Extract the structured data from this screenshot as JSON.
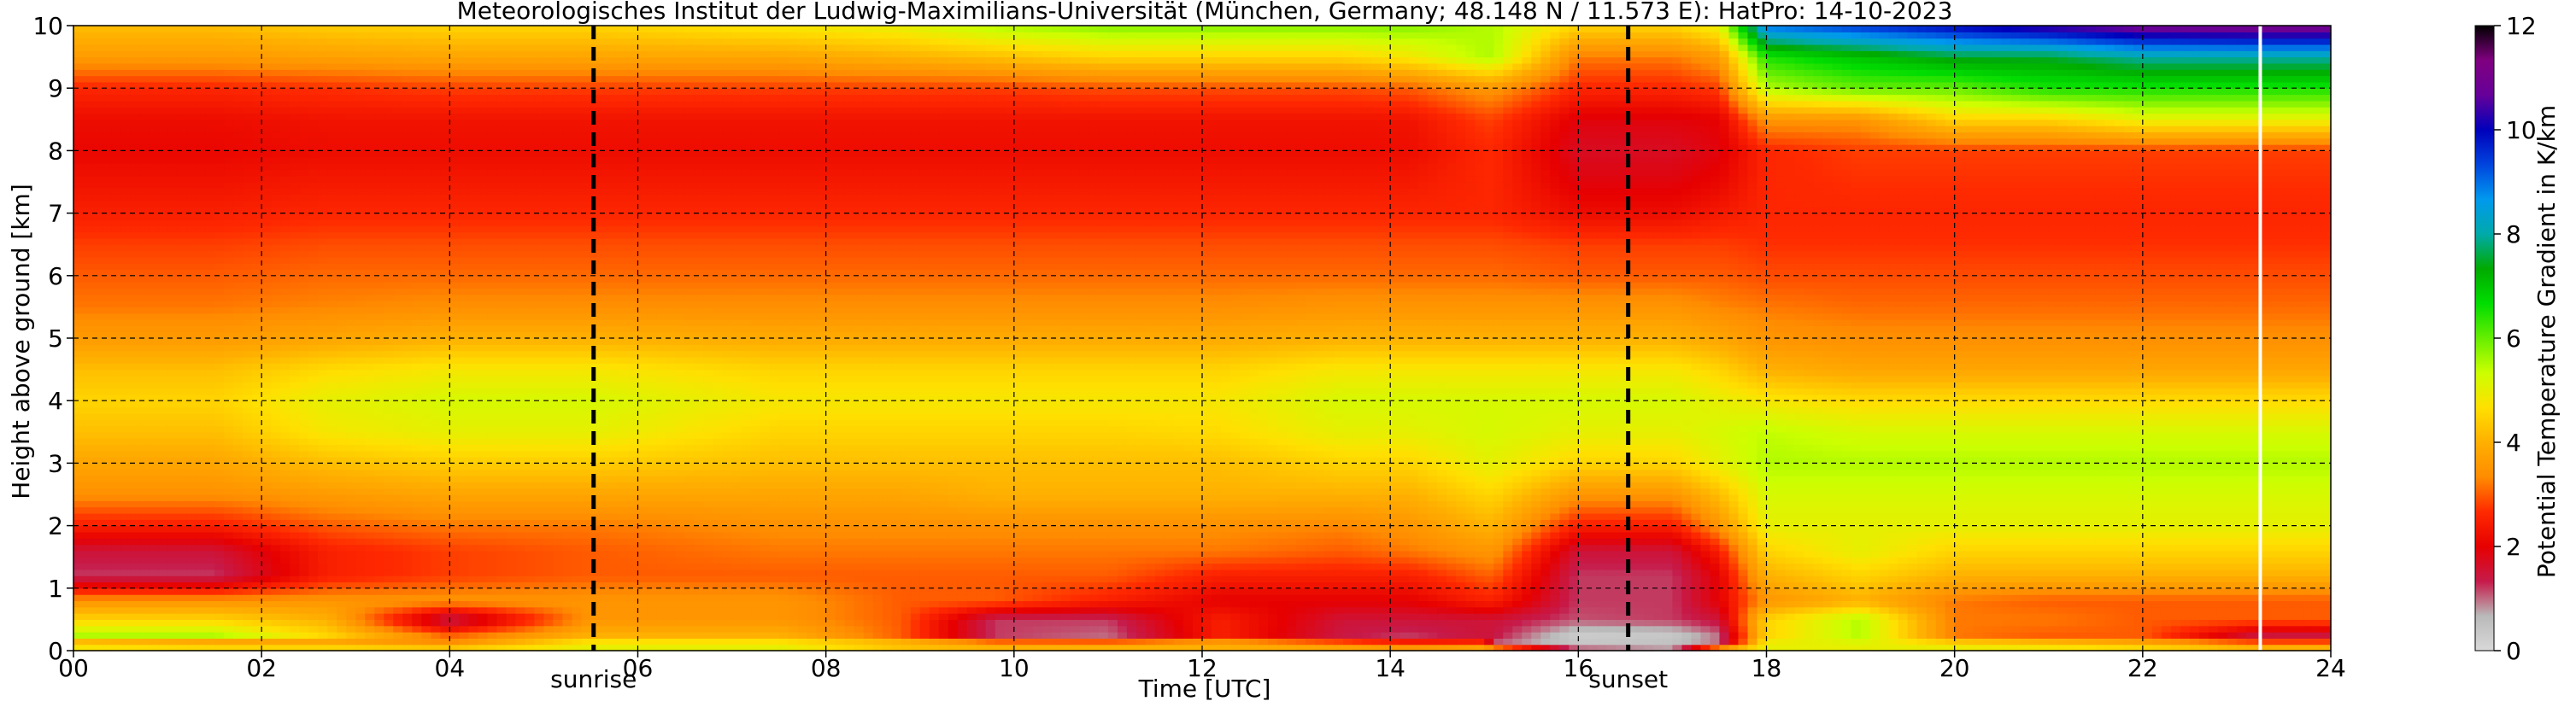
{
  "chart_data": {
    "type": "heatmap",
    "title": "Meteorologisches Institut der Ludwig-Maximilians-Universität (München, Germany; 48.148 N / 11.573 E):    HatPro: 14-10-2023",
    "xlabel": "Time [UTC]",
    "ylabel": "Height above ground [km]",
    "xlim": [
      0,
      24
    ],
    "ylim": [
      0,
      10
    ],
    "x_ticks": [
      "00",
      "02",
      "04",
      "06",
      "08",
      "10",
      "12",
      "14",
      "16",
      "18",
      "20",
      "22",
      "24"
    ],
    "y_ticks": [
      "0",
      "1",
      "2",
      "3",
      "4",
      "5",
      "6",
      "7",
      "8",
      "9",
      "10"
    ],
    "grid": true,
    "colorbar": {
      "label": "Potential Temperature Gradient in K/km",
      "range": [
        0,
        12
      ],
      "ticks": [
        "0",
        "2",
        "4",
        "6",
        "8",
        "10",
        "12"
      ],
      "colors": [
        "#d9d9d9",
        "#b9b9b9",
        "#c61a4a",
        "#e60000",
        "#ff2a00",
        "#ff8c00",
        "#ffb000",
        "#ffe000",
        "#ccff00",
        "#66ee00",
        "#00dd00",
        "#00aa00",
        "#00aaaa",
        "#0099ee",
        "#0044dd",
        "#0000bb",
        "#660099",
        "#800080",
        "#000000"
      ]
    },
    "events": [
      {
        "name": "sunrise",
        "time": 5.53
      },
      {
        "name": "sunset",
        "time": 16.53
      }
    ],
    "gap_time": 23.25,
    "time_knots": [
      0,
      1.5,
      2.7,
      4.0,
      5.5,
      7.5,
      8.8,
      9.8,
      11.0,
      12.2,
      13.5,
      14.2,
      15.0,
      15.1,
      16.0,
      17.0,
      17.5,
      18.0,
      19.0,
      20.0,
      21.0,
      22.0,
      23.2,
      24.0
    ],
    "height_knots": [
      0,
      0.1,
      0.25,
      0.5,
      0.8,
      1.2,
      1.6,
      2.0,
      2.5,
      3.0,
      3.5,
      4.0,
      4.5,
      5.0,
      5.5,
      6.0,
      6.5,
      7.0,
      7.5,
      8.0,
      8.5,
      9.0,
      9.5,
      10.0
    ],
    "gradient_grid": [
      [
        6.0,
        6.0,
        5.5,
        5.0,
        5.0,
        5.0,
        4.0,
        4.0,
        4.0,
        4.0,
        4.0,
        4.0,
        4.5,
        5.5,
        1.5,
        1.0,
        5.5,
        5.0,
        5.0,
        5.0,
        5.0,
        5.0,
        4.5,
        4.5
      ],
      [
        3.5,
        3.0,
        3.5,
        3.5,
        5.0,
        5.0,
        4.5,
        4.0,
        4.0,
        4.0,
        3.5,
        3.0,
        3.0,
        1.0,
        0.4,
        0.5,
        1.0,
        5.0,
        5.0,
        4.8,
        4.5,
        4.0,
        3.5,
        3.5
      ],
      [
        5.5,
        5.5,
        4.5,
        3.0,
        4.0,
        4.0,
        3.0,
        1.2,
        1.0,
        2.5,
        1.4,
        1.2,
        1.5,
        1.4,
        0.3,
        0.4,
        1.0,
        4.5,
        5.5,
        3.2,
        3.0,
        3.0,
        1.5,
        1.5
      ],
      [
        4.5,
        4.5,
        4.0,
        1.2,
        3.5,
        3.5,
        3.0,
        1.2,
        1.2,
        2.5,
        1.5,
        1.5,
        1.5,
        1.5,
        1.1,
        1.2,
        1.5,
        4.5,
        5.5,
        3.2,
        3.2,
        3.0,
        3.0,
        3.0
      ],
      [
        3.5,
        3.5,
        3.5,
        3.5,
        3.5,
        3.5,
        3.0,
        3.0,
        2.5,
        2.0,
        2.0,
        2.0,
        2.5,
        2.5,
        1.2,
        1.2,
        2.0,
        3.5,
        4.0,
        3.2,
        3.0,
        3.0,
        3.0,
        3.0
      ],
      [
        1.2,
        1.2,
        2.5,
        2.8,
        3.0,
        3.0,
        3.0,
        3.0,
        3.0,
        2.5,
        2.5,
        2.5,
        3.0,
        3.0,
        1.2,
        1.2,
        2.0,
        4.0,
        4.5,
        4.0,
        4.0,
        4.0,
        4.0,
        4.0
      ],
      [
        1.5,
        1.5,
        2.5,
        2.8,
        3.0,
        3.2,
        3.2,
        3.2,
        3.2,
        3.2,
        3.0,
        3.2,
        3.5,
        3.5,
        1.5,
        1.5,
        2.5,
        4.5,
        5.0,
        4.5,
        4.5,
        4.5,
        4.5,
        4.5
      ],
      [
        2.5,
        2.5,
        3.0,
        3.2,
        3.2,
        3.4,
        3.4,
        3.4,
        3.4,
        3.4,
        3.3,
        3.5,
        4.0,
        4.0,
        2.5,
        2.5,
        3.5,
        5.0,
        5.0,
        5.0,
        5.0,
        5.0,
        5.0,
        5.0
      ],
      [
        3.4,
        3.4,
        3.6,
        3.8,
        3.8,
        3.8,
        3.8,
        4.0,
        4.0,
        4.0,
        4.0,
        4.0,
        4.5,
        4.5,
        3.5,
        3.5,
        4.2,
        5.2,
        5.2,
        5.2,
        5.2,
        5.2,
        5.2,
        5.2
      ],
      [
        3.8,
        3.8,
        4.2,
        4.4,
        4.4,
        4.2,
        4.2,
        4.2,
        4.2,
        4.2,
        4.5,
        4.5,
        5.0,
        5.0,
        4.5,
        4.5,
        5.0,
        5.5,
        5.5,
        5.5,
        5.5,
        5.5,
        5.5,
        5.5
      ],
      [
        4.2,
        4.2,
        4.8,
        5.0,
        5.0,
        4.5,
        4.5,
        4.5,
        4.5,
        4.6,
        5.0,
        5.0,
        5.2,
        5.2,
        5.0,
        5.0,
        5.2,
        5.4,
        5.2,
        5.2,
        5.2,
        5.2,
        5.2,
        5.2
      ],
      [
        4.5,
        4.5,
        5.0,
        5.2,
        5.2,
        4.8,
        4.8,
        4.8,
        4.8,
        4.8,
        5.2,
        5.2,
        5.2,
        5.2,
        5.2,
        5.2,
        5.0,
        4.8,
        4.6,
        4.6,
        4.6,
        4.6,
        4.6,
        4.6
      ],
      [
        4.2,
        4.2,
        4.6,
        4.8,
        4.8,
        4.5,
        4.5,
        4.5,
        4.5,
        4.5,
        4.8,
        4.8,
        4.8,
        4.8,
        4.8,
        4.8,
        4.5,
        4.0,
        3.8,
        3.8,
        3.8,
        3.8,
        3.8,
        3.8
      ],
      [
        3.6,
        3.6,
        3.8,
        4.0,
        4.0,
        3.9,
        3.9,
        3.9,
        3.9,
        3.9,
        4.0,
        4.0,
        4.0,
        4.0,
        4.0,
        4.0,
        3.8,
        3.5,
        3.4,
        3.4,
        3.4,
        3.4,
        3.4,
        3.4
      ],
      [
        3.2,
        3.2,
        3.3,
        3.4,
        3.4,
        3.4,
        3.4,
        3.4,
        3.4,
        3.4,
        3.5,
        3.5,
        3.5,
        3.5,
        3.5,
        3.5,
        3.3,
        3.2,
        3.1,
        3.1,
        3.1,
        3.1,
        3.1,
        3.1
      ],
      [
        3.0,
        3.0,
        3.1,
        3.1,
        3.1,
        3.1,
        3.1,
        3.1,
        3.1,
        3.1,
        3.1,
        3.1,
        3.1,
        3.1,
        3.0,
        3.0,
        3.0,
        2.9,
        2.9,
        2.9,
        2.9,
        2.9,
        2.9,
        2.9
      ],
      [
        2.8,
        2.8,
        2.9,
        2.9,
        2.9,
        2.9,
        2.9,
        2.9,
        2.9,
        2.9,
        2.9,
        2.9,
        2.9,
        2.9,
        2.8,
        2.8,
        2.8,
        2.7,
        2.7,
        2.7,
        2.7,
        2.7,
        2.7,
        2.7
      ],
      [
        2.5,
        2.5,
        2.6,
        2.6,
        2.6,
        2.6,
        2.6,
        2.6,
        2.6,
        2.6,
        2.6,
        2.6,
        2.6,
        2.6,
        2.2,
        2.2,
        2.4,
        2.6,
        2.6,
        2.6,
        2.6,
        2.6,
        2.6,
        2.6
      ],
      [
        2.3,
        2.3,
        2.4,
        2.4,
        2.4,
        2.4,
        2.4,
        2.4,
        2.4,
        2.4,
        2.4,
        2.4,
        2.6,
        2.6,
        1.9,
        1.9,
        2.1,
        2.6,
        2.7,
        2.7,
        2.7,
        2.7,
        2.7,
        2.7
      ],
      [
        2.1,
        2.1,
        2.2,
        2.2,
        2.2,
        2.2,
        2.2,
        2.2,
        2.2,
        2.2,
        2.2,
        2.2,
        2.6,
        2.6,
        1.7,
        1.7,
        1.9,
        2.6,
        2.8,
        2.8,
        2.8,
        2.8,
        2.8,
        2.8
      ],
      [
        2.2,
        2.2,
        2.3,
        2.3,
        2.3,
        2.3,
        2.3,
        2.3,
        2.3,
        2.3,
        2.3,
        2.3,
        2.8,
        2.8,
        1.9,
        1.9,
        2.0,
        3.5,
        3.5,
        4.5,
        4.5,
        5.0,
        5.0,
        5.0
      ],
      [
        2.6,
        2.6,
        2.7,
        2.8,
        2.8,
        2.8,
        2.8,
        2.8,
        2.9,
        2.9,
        2.9,
        3.0,
        3.5,
        3.5,
        2.6,
        2.6,
        2.8,
        5.5,
        6.0,
        6.0,
        6.5,
        6.5,
        6.5,
        6.5
      ],
      [
        3.6,
        3.6,
        3.7,
        3.8,
        3.8,
        3.8,
        4.0,
        4.2,
        4.5,
        4.5,
        4.5,
        4.8,
        5.5,
        5.5,
        3.2,
        3.2,
        3.6,
        6.5,
        7.0,
        7.5,
        7.5,
        8.0,
        8.0,
        8.0
      ],
      [
        4.2,
        4.2,
        4.4,
        4.5,
        4.5,
        4.8,
        5.0,
        5.5,
        5.8,
        5.8,
        5.8,
        5.8,
        5.5,
        5.5,
        4.5,
        4.5,
        5.0,
        9.0,
        9.5,
        10.0,
        10.5,
        11.0,
        11.2,
        11.2
      ]
    ]
  }
}
